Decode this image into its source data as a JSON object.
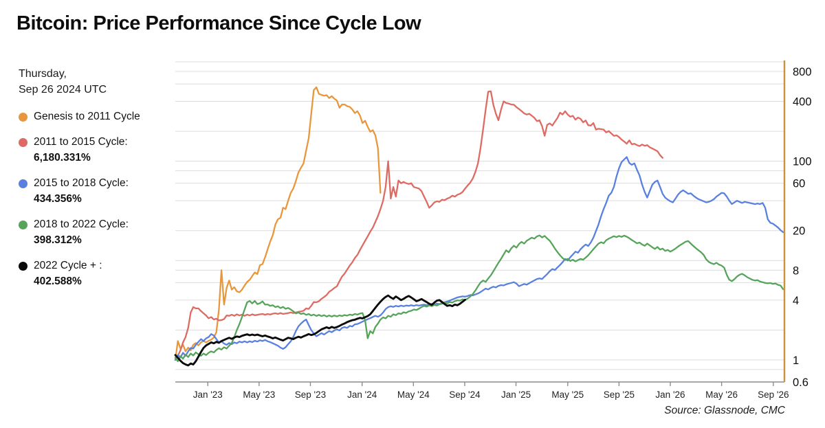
{
  "title": "Bitcoin: Price Performance Since Cycle Low",
  "date_label": {
    "line1": "Thursday,",
    "line2": "Sep 26 2024 UTC"
  },
  "legend": [
    {
      "label": "Genesis to 2011 Cycle",
      "value": "",
      "color": "#E8973C"
    },
    {
      "label": "2011 to 2015 Cycle:",
      "value": "6,180.331%",
      "color": "#DD6B63"
    },
    {
      "label": "2015 to 2018 Cycle:",
      "value": "434.356%",
      "color": "#5A80DF"
    },
    {
      "label": "2018 to 2022 Cycle:",
      "value": "398.312%",
      "color": "#56A45A"
    },
    {
      "label": "2022 Cycle + :",
      "value": "402.588%",
      "color": "#0B0B0B"
    }
  ],
  "source": "Source: Glassnode, CMC",
  "chart_data": {
    "type": "line",
    "title": "Bitcoin: Price Performance Since Cycle Low",
    "xlabel": "",
    "ylabel": "",
    "x_axis": {
      "unit": "days since cycle low (aligned to 2022 cycle dates)",
      "range_days": [
        0,
        1425
      ],
      "tick_days": [
        76,
        196,
        316,
        437,
        557,
        677,
        797,
        918,
        1038,
        1158,
        1278,
        1399
      ],
      "tick_labels": [
        "Jan '23",
        "May '23",
        "Sep '23",
        "Jan '24",
        "May '24",
        "Sep '24",
        "Jan '25",
        "May '25",
        "Sep '25",
        "Jan '26",
        "May '26",
        "Sep '26"
      ]
    },
    "y_axis": {
      "scale": "log",
      "unit": "price as multiple of cycle low",
      "range": [
        0.6,
        1032
      ],
      "tick_values": [
        800,
        400,
        100,
        60,
        20,
        8,
        4,
        1,
        0.6
      ],
      "tick_labels": [
        "800",
        "400",
        "100",
        "60",
        "20",
        "8",
        "4",
        "1",
        "0.6"
      ],
      "gridlines": [
        1000,
        800,
        600,
        400,
        200,
        100,
        80,
        60,
        40,
        20,
        10,
        8,
        6,
        4,
        2,
        1,
        0.8,
        0.6
      ],
      "axis_color": "#C9953C",
      "grid_color": "#DCDCDC"
    },
    "legend_position": "left",
    "series": [
      {
        "name": "Genesis to 2011 Cycle",
        "color": "#E8973C",
        "width": 2.3,
        "start_day": 0,
        "step_days": 6,
        "values": [
          1.0,
          1.55,
          1.3,
          1.42,
          1.22,
          1.33,
          1.25,
          1.42,
          1.48,
          1.4,
          1.5,
          1.55,
          1.5,
          1.56,
          1.6,
          1.68,
          1.9,
          3.2,
          8.0,
          3.6,
          5.3,
          6.3,
          5.1,
          5.4,
          4.9,
          4.8,
          5.1,
          5.6,
          6.1,
          6.4,
          7.0,
          7.6,
          7.3,
          9.0,
          9.2,
          10.8,
          13,
          15.5,
          18,
          23,
          26,
          27,
          34,
          33,
          40,
          48,
          53,
          63,
          77,
          86,
          95,
          128,
          170,
          300,
          520,
          555,
          475,
          465,
          455,
          462,
          432,
          452,
          425,
          408,
          345,
          372,
          372,
          358,
          352,
          332,
          305,
          318,
          288,
          242,
          255,
          222,
          198,
          205,
          182,
          135,
          48
        ]
      },
      {
        "name": "2011 to 2015 Cycle",
        "color": "#DD6B63",
        "width": 2.3,
        "start_day": 0,
        "step_days": 6,
        "values": [
          1.0,
          1.1,
          1.25,
          1.5,
          1.7,
          2.1,
          3.0,
          3.4,
          3.3,
          3.3,
          3.1,
          2.95,
          2.8,
          2.62,
          2.7,
          2.55,
          2.6,
          2.5,
          2.52,
          2.58,
          2.8,
          2.78,
          2.85,
          2.78,
          2.88,
          2.8,
          2.86,
          2.78,
          2.86,
          2.8,
          2.88,
          2.82,
          2.84,
          2.88,
          2.9,
          2.85,
          2.9,
          2.86,
          2.92,
          2.95,
          2.9,
          2.96,
          2.9,
          2.93,
          2.96,
          3.0,
          2.96,
          3.0,
          3.05,
          3.08,
          3.12,
          3.3,
          3.26,
          3.5,
          3.82,
          3.8,
          3.9,
          4.12,
          4.3,
          4.5,
          4.85,
          5.05,
          5.3,
          5.5,
          6.2,
          6.9,
          7.4,
          8.1,
          8.9,
          9.6,
          10.6,
          11.4,
          12.8,
          14.2,
          15.8,
          17.5,
          19.5,
          21.5,
          24.5,
          28,
          33,
          40,
          55,
          100,
          42,
          55,
          44,
          64,
          60,
          62,
          60,
          59,
          60,
          55,
          54,
          53,
          50,
          44,
          39,
          34,
          36,
          38.5,
          39.5,
          39,
          41,
          40.5,
          42,
          43,
          45,
          44,
          46,
          47,
          49,
          53,
          57,
          61,
          67,
          78,
          95,
          135,
          210,
          330,
          500,
          505,
          370,
          300,
          258,
          330,
          400,
          385,
          380,
          372,
          370,
          350,
          335,
          320,
          303,
          295,
          300,
          287,
          273,
          253,
          258,
          225,
          180,
          232,
          240,
          228,
          250,
          272,
          308,
          295,
          318,
          295,
          280,
          286,
          262,
          275,
          267,
          246,
          257,
          230,
          228,
          242,
          208,
          212,
          210,
          208,
          195,
          201,
          190,
          180,
          182,
          175,
          165,
          158,
          150,
          162,
          148,
          150,
          145,
          142,
          147,
          143,
          145,
          138,
          134,
          130,
          126,
          115,
          108
        ]
      },
      {
        "name": "2015 to 2018 Cycle",
        "color": "#5A80DF",
        "width": 2.3,
        "start_day": 0,
        "step_days": 6,
        "values": [
          1.0,
          1.12,
          1.06,
          1.18,
          1.1,
          1.22,
          1.32,
          1.3,
          1.42,
          1.52,
          1.62,
          1.55,
          1.65,
          1.7,
          1.82,
          1.76,
          1.62,
          1.5,
          1.54,
          1.46,
          1.42,
          1.48,
          1.44,
          1.5,
          1.47,
          1.53,
          1.5,
          1.54,
          1.5,
          1.54,
          1.51,
          1.56,
          1.53,
          1.58,
          1.55,
          1.59,
          1.54,
          1.51,
          1.47,
          1.43,
          1.39,
          1.33,
          1.29,
          1.34,
          1.44,
          1.54,
          1.7,
          1.95,
          2.18,
          2.32,
          2.45,
          2.55,
          2.25,
          2.0,
          1.85,
          1.73,
          1.79,
          1.86,
          1.8,
          1.88,
          1.95,
          1.9,
          1.98,
          2.03,
          1.98,
          2.1,
          2.14,
          2.1,
          2.2,
          2.17,
          2.28,
          2.3,
          2.36,
          2.43,
          2.5,
          2.57,
          2.63,
          2.71,
          2.78,
          2.72,
          2.81,
          3.0,
          3.25,
          3.4,
          3.47,
          3.42,
          3.5,
          3.45,
          3.52,
          3.47,
          3.53,
          3.5,
          3.55,
          3.5,
          3.56,
          3.52,
          3.57,
          3.6,
          3.56,
          3.61,
          3.66,
          3.61,
          3.69,
          3.65,
          3.73,
          3.8,
          3.87,
          3.96,
          4.06,
          4.16,
          4.26,
          4.31,
          4.36,
          4.33,
          4.4,
          4.5,
          4.46,
          4.56,
          4.66,
          4.82,
          5.02,
          5.22,
          5.12,
          5.32,
          5.46,
          5.36,
          5.56,
          5.66,
          5.62,
          5.76,
          5.86,
          5.96,
          6.06,
          5.86,
          5.52,
          5.66,
          5.82,
          5.72,
          5.92,
          6.12,
          6.32,
          6.52,
          6.62,
          6.52,
          6.92,
          7.32,
          7.82,
          8.22,
          8.02,
          8.52,
          9.02,
          9.62,
          10.4,
          10.0,
          10.8,
          11.5,
          12.3,
          12.0,
          13.0,
          13.8,
          14.5,
          14.0,
          15.2,
          17.0,
          19.8,
          23,
          28,
          33,
          38,
          45,
          48,
          55,
          70,
          85,
          98,
          104,
          110,
          96,
          92,
          95,
          82,
          72,
          58,
          49,
          43,
          50,
          58,
          62,
          64,
          55,
          47,
          43,
          41,
          39.5,
          38.5,
          42,
          46,
          49,
          51,
          49,
          47,
          47.5,
          45,
          43,
          41.5,
          40.5,
          39.5,
          38.5,
          39,
          40,
          41.5,
          44,
          46,
          48,
          47.5,
          44,
          40,
          37,
          38.5,
          40,
          39,
          38,
          39,
          38.5,
          38,
          37.5,
          37,
          37.5,
          37,
          38,
          34,
          26,
          24,
          23.5,
          22.5,
          21.5,
          20.2,
          19.3
        ]
      },
      {
        "name": "2018 to 2022 Cycle",
        "color": "#56A45A",
        "width": 2.3,
        "start_day": 0,
        "step_days": 6,
        "values": [
          1.05,
          0.97,
          1.09,
          1.03,
          1.13,
          1.07,
          1.16,
          1.11,
          1.19,
          1.14,
          1.1,
          1.16,
          1.12,
          1.18,
          1.22,
          1.19,
          1.26,
          1.31,
          1.27,
          1.34,
          1.3,
          1.39,
          1.48,
          1.7,
          2.0,
          2.3,
          2.7,
          3.2,
          3.8,
          3.92,
          3.7,
          3.92,
          3.65,
          3.72,
          3.88,
          3.6,
          3.62,
          3.5,
          3.55,
          3.4,
          3.47,
          3.32,
          3.42,
          3.27,
          3.34,
          3.22,
          3.08,
          2.94,
          3.0,
          2.9,
          2.95,
          2.84,
          2.9,
          2.8,
          2.86,
          2.77,
          2.84,
          2.76,
          2.82,
          2.73,
          2.8,
          2.73,
          2.8,
          2.74,
          2.81,
          2.76,
          2.83,
          2.79,
          2.86,
          2.82,
          2.9,
          2.86,
          2.93,
          2.96,
          2.5,
          1.65,
          1.95,
          1.85,
          2.15,
          2.32,
          2.55,
          2.68,
          2.62,
          2.78,
          2.72,
          2.88,
          2.82,
          2.95,
          2.9,
          3.02,
          2.97,
          3.08,
          3.12,
          3.22,
          3.18,
          3.28,
          3.4,
          3.5,
          3.44,
          3.54,
          3.48,
          3.58,
          3.53,
          3.63,
          3.68,
          3.76,
          3.7,
          3.83,
          3.78,
          3.9,
          3.98,
          3.95,
          4.08,
          4.0,
          4.15,
          4.35,
          4.6,
          5.0,
          5.5,
          6.0,
          6.3,
          6.1,
          6.6,
          7.1,
          7.8,
          8.6,
          9.5,
          10.4,
          11.5,
          12.7,
          12.1,
          13.3,
          14.1,
          13.5,
          14.7,
          15.4,
          14.8,
          15.8,
          16.4,
          17.0,
          16.6,
          17.5,
          17.9,
          17.1,
          17.7,
          16.7,
          15.8,
          14.5,
          13.2,
          12.2,
          11.3,
          10.6,
          10.1,
          10.4,
          9.9,
          10.2,
          9.8,
          10.1,
          10.4,
          10.2,
          10.7,
          11.3,
          12.1,
          13.0,
          13.9,
          14.8,
          15.3,
          14.9,
          16.0,
          16.6,
          17.1,
          17.6,
          17.2,
          17.7,
          17.3,
          17.8,
          17.4,
          16.8,
          16.1,
          15.5,
          14.9,
          15.2,
          14.5,
          14.1,
          14.8,
          14.2,
          13.6,
          13.1,
          13.7,
          12.9,
          13.2,
          12.5,
          12.8,
          12.3,
          12.7,
          13.2,
          13.8,
          14.4,
          14.9,
          15.5,
          15.7,
          14.8,
          14.0,
          13.3,
          12.7,
          12.1,
          11.4,
          10.3,
          9.7,
          9.4,
          9.2,
          9.5,
          9.1,
          8.9,
          8.5,
          7.2,
          6.4,
          6.2,
          6.5,
          6.9,
          7.2,
          7.35,
          7.1,
          6.8,
          6.6,
          6.4,
          6.3,
          6.35,
          6.15,
          6.05,
          5.95,
          5.9,
          5.95,
          5.82,
          5.88,
          5.7,
          5.6,
          5.15
        ]
      },
      {
        "name": "2022 Cycle +",
        "color": "#0B0B0B",
        "width": 2.9,
        "start_day": 0,
        "step_days": 6,
        "values": [
          1.12,
          1.05,
          0.98,
          0.93,
          0.9,
          0.88,
          0.92,
          0.9,
          0.97,
          1.08,
          1.2,
          1.32,
          1.4,
          1.45,
          1.5,
          1.47,
          1.52,
          1.49,
          1.55,
          1.59,
          1.63,
          1.67,
          1.63,
          1.68,
          1.72,
          1.7,
          1.75,
          1.78,
          1.81,
          1.77,
          1.8,
          1.77,
          1.8,
          1.76,
          1.73,
          1.76,
          1.72,
          1.69,
          1.65,
          1.68,
          1.64,
          1.6,
          1.57,
          1.62,
          1.67,
          1.65,
          1.62,
          1.67,
          1.71,
          1.68,
          1.73,
          1.77,
          1.82,
          1.78,
          1.81,
          1.87,
          1.95,
          2.03,
          2.08,
          2.13,
          2.08,
          2.15,
          2.1,
          2.14,
          2.2,
          2.27,
          2.33,
          2.4,
          2.46,
          2.51,
          2.54,
          2.6,
          2.65,
          2.62,
          2.69,
          2.76,
          2.88,
          3.1,
          3.35,
          3.6,
          3.85,
          4.1,
          4.3,
          4.45,
          4.25,
          4.12,
          4.35,
          4.18,
          4.0,
          4.12,
          4.28,
          4.4,
          4.25,
          4.08,
          3.9,
          3.98,
          4.1,
          3.95,
          3.82,
          3.68,
          3.58,
          3.78,
          3.95,
          4.0,
          3.82,
          3.65,
          3.5,
          3.55,
          3.48,
          3.6,
          3.55,
          3.68,
          3.85,
          4.03
        ]
      }
    ]
  }
}
